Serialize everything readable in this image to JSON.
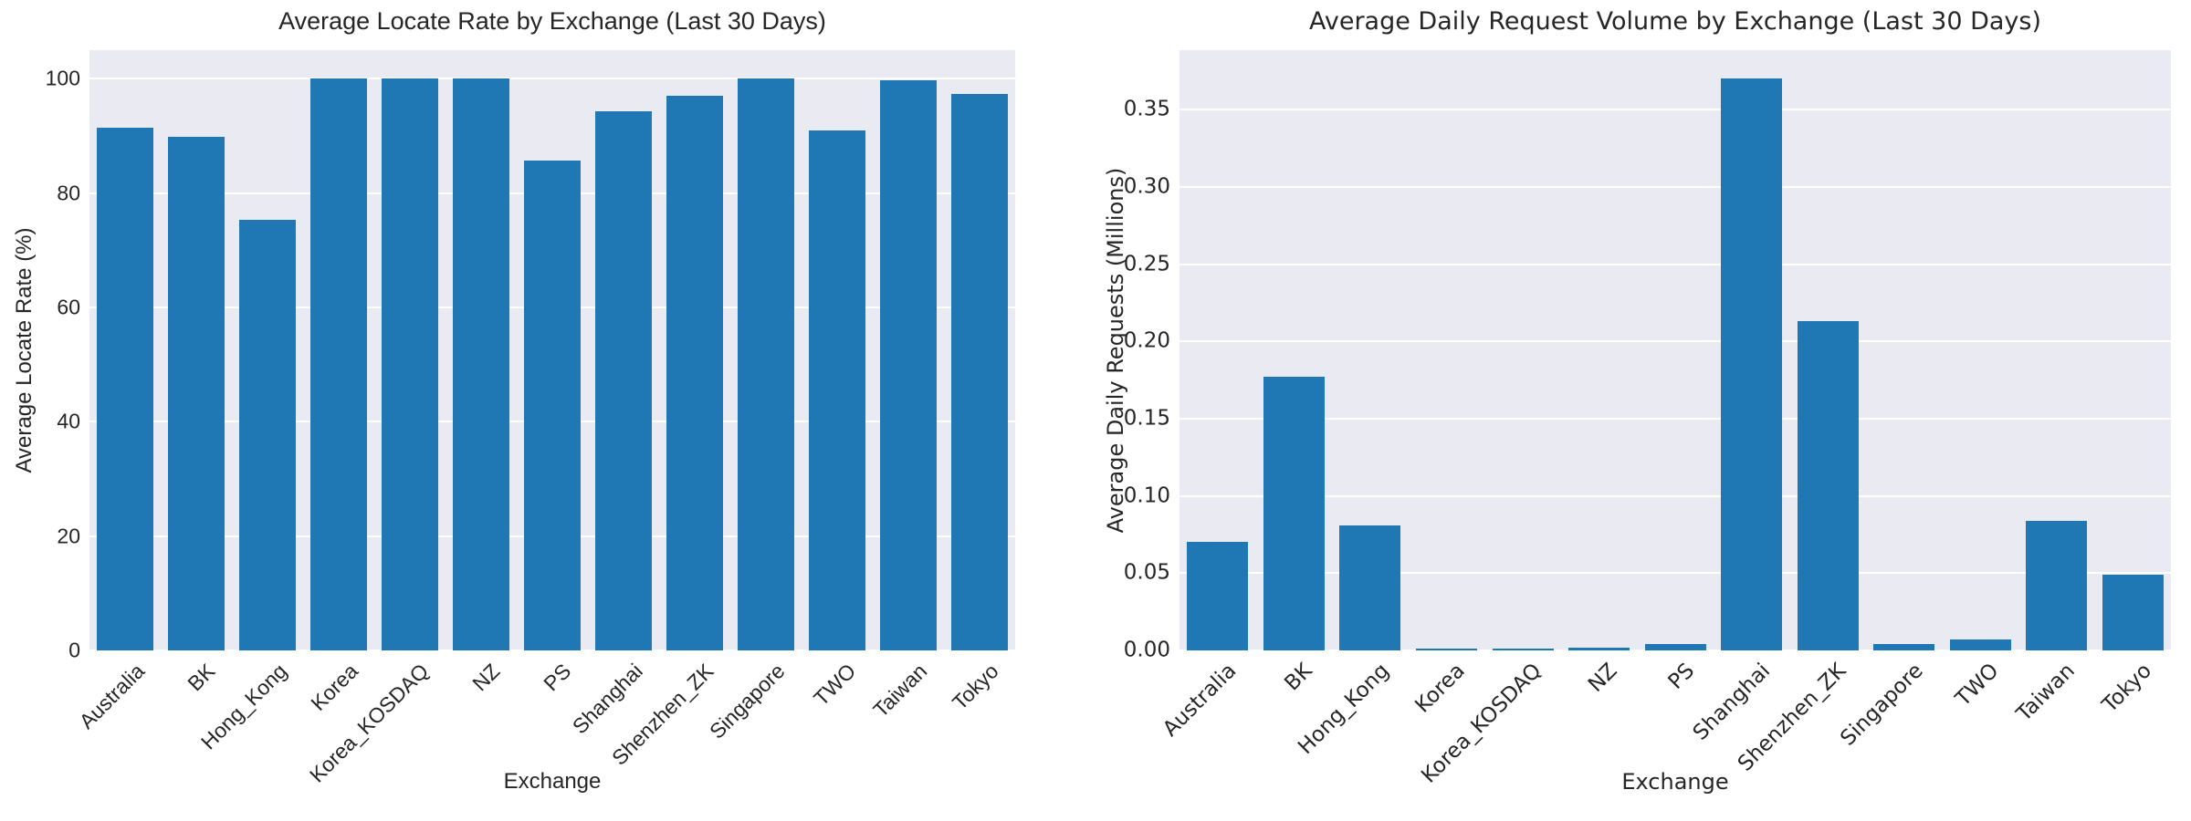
{
  "figure": {
    "background": "#ffffff",
    "text_color": "#262626",
    "plot_background": "#eaeaf2",
    "grid_color": "#ffffff",
    "bar_color": "#1f77b4"
  },
  "chart_data": [
    {
      "type": "bar",
      "title": "Average Locate Rate by Exchange (Last 30 Days)",
      "xlabel": "Exchange",
      "ylabel": "Average Locate Rate (%)",
      "categories": [
        "Australia",
        "BK",
        "Hong_Kong",
        "Korea",
        "Korea_KOSDAQ",
        "NZ",
        "PS",
        "Shanghai",
        "Shenzhen_ZK",
        "Singapore",
        "TWO",
        "Taiwan",
        "Tokyo"
      ],
      "values": [
        91.4,
        89.8,
        75.3,
        100.0,
        100.0,
        100.0,
        85.7,
        94.3,
        97.0,
        100.0,
        91.0,
        99.7,
        97.4
      ],
      "ylim": [
        0,
        105
      ],
      "yticks": [
        0,
        20,
        40,
        60,
        80,
        100
      ],
      "ytick_labels": [
        "0",
        "20",
        "40",
        "60",
        "80",
        "100"
      ],
      "grid": true,
      "legend": "none",
      "bar_color": "#1f77b4",
      "plot_bg": "#eaeaf2"
    },
    {
      "type": "bar",
      "title": "Average Daily Request Volume by Exchange (Last 30 Days)",
      "xlabel": "Exchange",
      "ylabel": "Average Daily Requests (Millions)",
      "categories": [
        "Australia",
        "BK",
        "Hong_Kong",
        "Korea",
        "Korea_KOSDAQ",
        "NZ",
        "PS",
        "Shanghai",
        "Shenzhen_ZK",
        "Singapore",
        "TWO",
        "Taiwan",
        "Tokyo"
      ],
      "values": [
        0.07,
        0.177,
        0.081,
        0.001,
        0.001,
        0.002,
        0.004,
        0.37,
        0.213,
        0.004,
        0.007,
        0.084,
        0.049
      ],
      "ylim": [
        0,
        0.3885
      ],
      "yticks": [
        0,
        0.05,
        0.1,
        0.15,
        0.2,
        0.25,
        0.3,
        0.35
      ],
      "ytick_labels": [
        "0.00",
        "0.05",
        "0.10",
        "0.15",
        "0.20",
        "0.25",
        "0.30",
        "0.35"
      ],
      "grid": true,
      "legend": "none",
      "bar_color": "#1f77b4",
      "plot_bg": "#eaeaf2"
    }
  ]
}
